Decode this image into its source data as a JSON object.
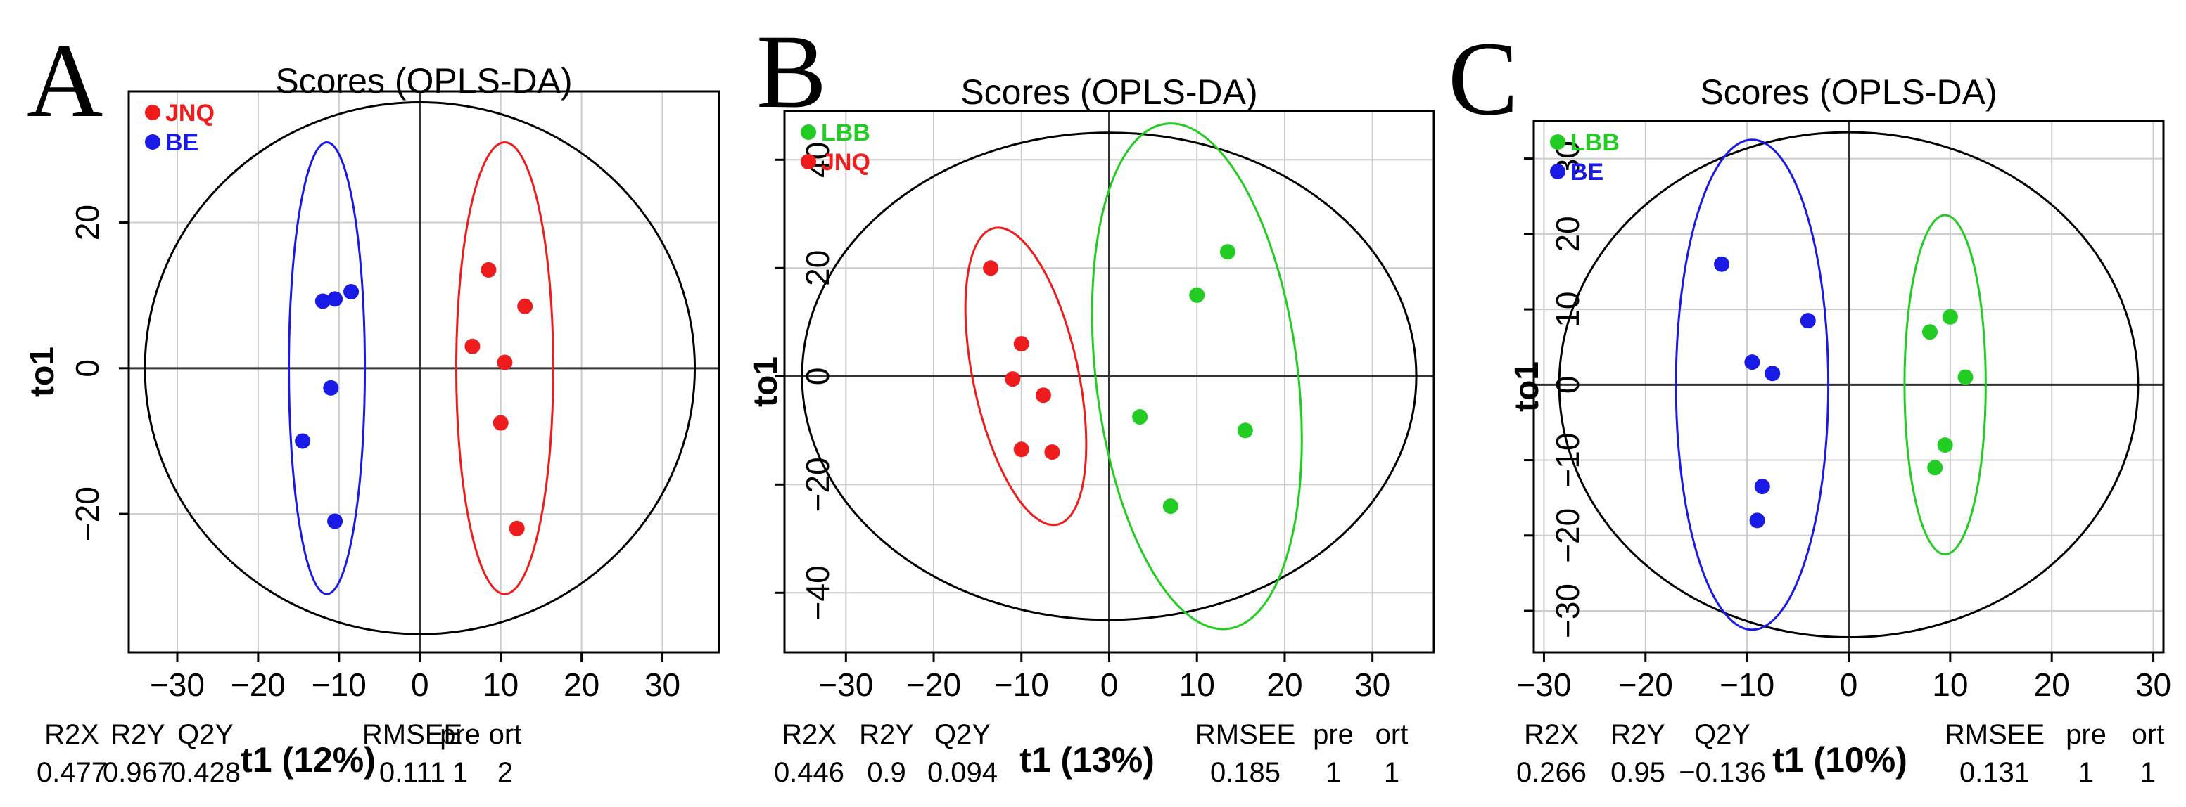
{
  "chart_data": [
    {
      "type": "scatter",
      "panel_letter": "A",
      "title": "Scores (OPLS-DA)",
      "xlabel": "t1 (12%)",
      "ylabel": "to1",
      "xlim": [
        -36,
        37
      ],
      "ylim": [
        -39,
        38
      ],
      "xticks": [
        -30,
        -20,
        -10,
        0,
        10,
        20,
        30
      ],
      "yticks": [
        -20,
        0,
        20
      ],
      "grid": true,
      "legend_position": "top-left",
      "ellipse": {
        "cx": 0,
        "cy": 0,
        "rx": 34,
        "ry": 36.5,
        "color": "#000000"
      },
      "series": [
        {
          "name": "JNQ",
          "color": "#ee1c1c",
          "points": [
            [
              8.5,
              13.5
            ],
            [
              13,
              8.5
            ],
            [
              6.5,
              3
            ],
            [
              10.5,
              0.8
            ],
            [
              10,
              -7.5
            ],
            [
              12,
              -22
            ]
          ],
          "ellipse": {
            "cx": 10.5,
            "cy": 0,
            "rx": 6,
            "ry": 31
          }
        },
        {
          "name": "BE",
          "color": "#1a1ae6",
          "points": [
            [
              -8.5,
              10.5
            ],
            [
              -10.5,
              9.5
            ],
            [
              -12,
              9.2
            ],
            [
              -11,
              -2.7
            ],
            [
              -14.5,
              -10
            ],
            [
              -10.5,
              -21
            ]
          ],
          "ellipse": {
            "cx": -11.5,
            "cy": 0,
            "rx": 4.7,
            "ry": 31
          }
        }
      ],
      "stats": {
        "headers": [
          "R2X",
          "R2Y",
          "Q2Y",
          "RMSEE",
          "pre",
          "ort"
        ],
        "values": [
          "0.477",
          "0.967",
          "0.428",
          "0.111",
          "1",
          "2"
        ]
      }
    },
    {
      "type": "scatter",
      "panel_letter": "B",
      "title": "Scores (OPLS-DA)",
      "xlabel": "t1 (13%)",
      "ylabel": "to1",
      "xlim": [
        -37,
        37
      ],
      "ylim": [
        -51,
        49
      ],
      "xticks": [
        -30,
        -20,
        -10,
        0,
        10,
        20,
        30
      ],
      "yticks": [
        -40,
        -20,
        0,
        20,
        40
      ],
      "grid": true,
      "legend_position": "top-left",
      "ellipse": {
        "cx": 0,
        "cy": 0,
        "rx": 35,
        "ry": 45,
        "color": "#000000"
      },
      "series": [
        {
          "name": "LBB",
          "color": "#22cc22",
          "points": [
            [
              13.5,
              23
            ],
            [
              10,
              15
            ],
            [
              3.5,
              -7.5
            ],
            [
              15.5,
              -10
            ],
            [
              7,
              -24
            ]
          ],
          "ellipse": {
            "cx": 10,
            "cy": 0,
            "rx": 11.5,
            "ry": 47,
            "rotate_deg": -7
          }
        },
        {
          "name": "JNQ",
          "color": "#ee1c1c",
          "points": [
            [
              -13.5,
              20
            ],
            [
              -10,
              6
            ],
            [
              -11,
              -0.5
            ],
            [
              -7.5,
              -3.5
            ],
            [
              -10,
              -13.5
            ],
            [
              -6.5,
              -14
            ]
          ],
          "ellipse": {
            "cx": -9.5,
            "cy": 0,
            "rx": 6,
            "ry": 28,
            "rotate_deg": -12
          }
        }
      ],
      "stats": {
        "headers": [
          "R2X",
          "R2Y",
          "Q2Y",
          "RMSEE",
          "pre",
          "ort"
        ],
        "values": [
          "0.446",
          "0.9",
          "0.094",
          "0.185",
          "1",
          "1"
        ]
      }
    },
    {
      "type": "scatter",
      "panel_letter": "C",
      "title": "Scores (OPLS-DA)",
      "xlabel": "t1 (10%)",
      "ylabel": "to1",
      "xlim": [
        -31,
        31
      ],
      "ylim": [
        -35.5,
        35
      ],
      "xticks": [
        -30,
        -20,
        -10,
        0,
        10,
        20,
        30
      ],
      "yticks": [
        -30,
        -20,
        -10,
        0,
        10,
        20,
        30
      ],
      "grid": true,
      "legend_position": "top-left",
      "ellipse": {
        "cx": 0,
        "cy": 0,
        "rx": 28.5,
        "ry": 33.5,
        "color": "#000000"
      },
      "series": [
        {
          "name": "LBB",
          "color": "#22cc22",
          "points": [
            [
              10,
              9
            ],
            [
              8,
              7
            ],
            [
              11.5,
              1
            ],
            [
              9.5,
              -8
            ],
            [
              8.5,
              -11
            ]
          ],
          "ellipse": {
            "cx": 9.5,
            "cy": 0,
            "rx": 4,
            "ry": 22.5
          }
        },
        {
          "name": "BE",
          "color": "#1a1ae6",
          "points": [
            [
              -12.5,
              16
            ],
            [
              -4,
              8.5
            ],
            [
              -9.5,
              3
            ],
            [
              -7.5,
              1.5
            ],
            [
              -8.5,
              -13.5
            ],
            [
              -9,
              -18
            ]
          ],
          "ellipse": {
            "cx": -9.5,
            "cy": 0,
            "rx": 7.5,
            "ry": 32.5
          }
        }
      ],
      "stats": {
        "headers": [
          "R2X",
          "R2Y",
          "Q2Y",
          "RMSEE",
          "pre",
          "ort"
        ],
        "values": [
          "0.266",
          "0.95",
          "−0.136",
          "0.131",
          "1",
          "1"
        ]
      }
    }
  ]
}
